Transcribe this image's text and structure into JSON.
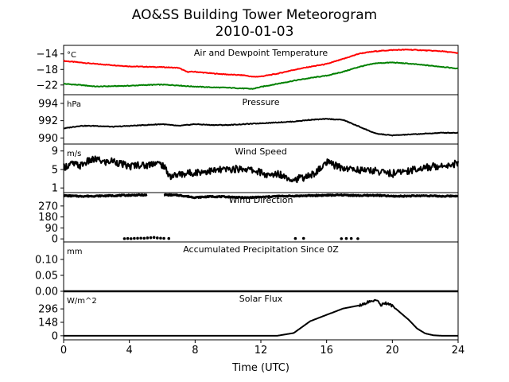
{
  "figure": {
    "title_line1": "AO&SS Building Tower Meteorogram",
    "title_line2": "2010-01-03",
    "xlabel": "Time (UTC)"
  },
  "chart_data": [
    {
      "id": "temp",
      "type": "line",
      "title": "Air and Dewpoint Temperature",
      "unit": "°C",
      "ylim": [
        -24.5,
        -11.8
      ],
      "yticks": [
        -14,
        -18,
        -22
      ],
      "ytick_labels": [
        "−14",
        "−18",
        "−22"
      ],
      "x": [
        0,
        1,
        2,
        3,
        4,
        5,
        6,
        7,
        7.5,
        8,
        9,
        10,
        11,
        11.5,
        12,
        13,
        14,
        15,
        16,
        17,
        18,
        19,
        20,
        21,
        22,
        23,
        24
      ],
      "series": [
        {
          "color": "#ff0000",
          "y": [
            -15.8,
            -16.2,
            -16.6,
            -16.9,
            -17.2,
            -17.3,
            -17.4,
            -17.6,
            -18.6,
            -18.6,
            -19.0,
            -19.3,
            -19.5,
            -19.9,
            -19.8,
            -19.1,
            -18.1,
            -17.3,
            -16.6,
            -15.3,
            -13.9,
            -13.3,
            -13.0,
            -12.9,
            -13.1,
            -13.3,
            -13.8
          ]
        },
        {
          "color": "#008000",
          "y": [
            -21.7,
            -22.0,
            -22.4,
            -22.3,
            -22.2,
            -22.0,
            -21.9,
            -22.1,
            -22.3,
            -22.4,
            -22.6,
            -22.7,
            -22.9,
            -23.0,
            -22.5,
            -21.7,
            -20.9,
            -20.2,
            -19.6,
            -18.6,
            -17.3,
            -16.4,
            -16.2,
            -16.5,
            -16.9,
            -17.3,
            -17.8
          ]
        }
      ]
    },
    {
      "id": "pressure",
      "type": "line",
      "title": "Pressure",
      "unit": "hPa",
      "ylim": [
        989.3,
        995.0
      ],
      "yticks": [
        994,
        992,
        990
      ],
      "ytick_labels": [
        "994",
        "992",
        "990"
      ],
      "x": [
        0,
        1,
        2,
        3,
        4,
        5,
        6,
        7,
        8,
        9,
        10,
        11,
        12,
        13,
        14,
        15,
        16,
        17,
        18,
        19,
        20,
        21,
        22,
        23,
        24
      ],
      "series": [
        {
          "color": "#000000",
          "y": [
            991.1,
            991.4,
            991.4,
            991.3,
            991.4,
            991.5,
            991.6,
            991.4,
            991.6,
            991.5,
            991.5,
            991.6,
            991.7,
            991.8,
            991.9,
            992.1,
            992.2,
            992.1,
            991.3,
            990.5,
            990.3,
            990.4,
            990.5,
            990.6,
            990.6
          ]
        }
      ]
    },
    {
      "id": "wind_speed",
      "type": "line",
      "title": "Wind Speed",
      "unit": "m/s",
      "ylim": [
        0.0,
        10.5
      ],
      "yticks": [
        9,
        5,
        1
      ],
      "ytick_labels": [
        "9",
        "5",
        "1"
      ],
      "x": [
        0,
        0.5,
        1,
        1.5,
        2,
        2.5,
        3,
        3.5,
        4,
        4.5,
        5,
        5.5,
        6,
        6.5,
        7,
        8,
        9,
        10,
        11,
        12,
        12.5,
        13,
        14,
        14.5,
        15,
        15.5,
        16,
        17,
        18,
        19,
        20,
        21,
        22,
        23,
        24
      ],
      "series": [
        {
          "color": "#000000",
          "y": [
            5.5,
            6.2,
            5.8,
            6.8,
            7.2,
            6.5,
            6.9,
            6.2,
            5.6,
            6.1,
            5.8,
            6.5,
            6.0,
            3.5,
            3.9,
            4.4,
            4.7,
            5.0,
            5.2,
            4.4,
            3.5,
            4.2,
            2.8,
            3.2,
            3.6,
            4.8,
            6.5,
            5.3,
            4.9,
            4.7,
            4.1,
            4.8,
            5.4,
            5.9,
            6.3
          ]
        }
      ]
    },
    {
      "id": "wind_direction",
      "type": "scatter",
      "title": "Wind Direction",
      "unit": "",
      "ylim": [
        -25,
        380
      ],
      "yticks": [
        270,
        180,
        90,
        0
      ],
      "ytick_labels": [
        "270",
        "180",
        "90",
        "0"
      ],
      "series": [
        {
          "color": "#000000",
          "segments": [
            {
              "x": [
                0,
                1,
                2,
                3,
                4,
                4.5,
                5.1
              ],
              "y": [
                355,
                350,
                352,
                355,
                358,
                360,
                360
              ]
            },
            {
              "x": [
                6.1,
                7,
                8,
                9,
                10,
                11,
                12,
                13,
                14,
                15,
                16,
                17,
                18,
                19,
                20,
                21,
                22,
                23,
                24
              ],
              "y": [
                362,
                358,
                340,
                348,
                345,
                338,
                343,
                350,
                352,
                355,
                358,
                360,
                355,
                358,
                350,
                352,
                355,
                350,
                353
              ]
            }
          ],
          "points": [
            {
              "x": 3.7,
              "y": 2
            },
            {
              "x": 3.9,
              "y": 3
            },
            {
              "x": 4.1,
              "y": 2
            },
            {
              "x": 4.3,
              "y": 4
            },
            {
              "x": 4.5,
              "y": 5
            },
            {
              "x": 4.7,
              "y": 6
            },
            {
              "x": 4.9,
              "y": 5
            },
            {
              "x": 5.1,
              "y": 8
            },
            {
              "x": 5.3,
              "y": 10
            },
            {
              "x": 5.5,
              "y": 12
            },
            {
              "x": 5.7,
              "y": 8
            },
            {
              "x": 5.9,
              "y": 6
            },
            {
              "x": 6.1,
              "y": 4
            },
            {
              "x": 6.4,
              "y": 3
            },
            {
              "x": 14.1,
              "y": 3
            },
            {
              "x": 14.6,
              "y": 4
            },
            {
              "x": 16.9,
              "y": 2
            },
            {
              "x": 17.2,
              "y": 3
            },
            {
              "x": 17.5,
              "y": 3
            },
            {
              "x": 17.9,
              "y": 2
            }
          ]
        }
      ]
    },
    {
      "id": "precip",
      "type": "line",
      "title": "Accumulated Precipitation Since 0Z",
      "unit": "mm",
      "ylim": [
        0.0,
        0.155
      ],
      "yticks": [
        0.1,
        0.05,
        0.0
      ],
      "ytick_labels": [
        "0.10",
        "0.05",
        "0.00"
      ],
      "x": [
        0,
        24
      ],
      "series": [
        {
          "color": "#000000",
          "y": [
            0.0,
            0.0
          ]
        }
      ]
    },
    {
      "id": "solar",
      "type": "line",
      "title": "Solar Flux",
      "unit": "W/m^2",
      "ylim": [
        -45,
        490
      ],
      "yticks": [
        296,
        148,
        0
      ],
      "ytick_labels": [
        "296",
        "148",
        "0"
      ],
      "x": [
        0,
        13,
        14,
        14.5,
        15,
        16,
        17,
        18,
        18.5,
        19,
        19.3,
        19.6,
        20,
        21,
        21.5,
        22,
        22.5,
        23,
        24
      ],
      "series": [
        {
          "color": "#000000",
          "y": [
            0,
            0,
            30,
            95,
            160,
            230,
            300,
            335,
            370,
            395,
            340,
            360,
            330,
            175,
            80,
            25,
            5,
            0,
            0
          ]
        }
      ]
    }
  ],
  "xaxis": {
    "xlim": [
      0,
      24
    ],
    "ticks": [
      0,
      4,
      8,
      12,
      16,
      20,
      24
    ],
    "tick_labels": [
      "0",
      "4",
      "8",
      "12",
      "16",
      "20",
      "24"
    ]
  }
}
